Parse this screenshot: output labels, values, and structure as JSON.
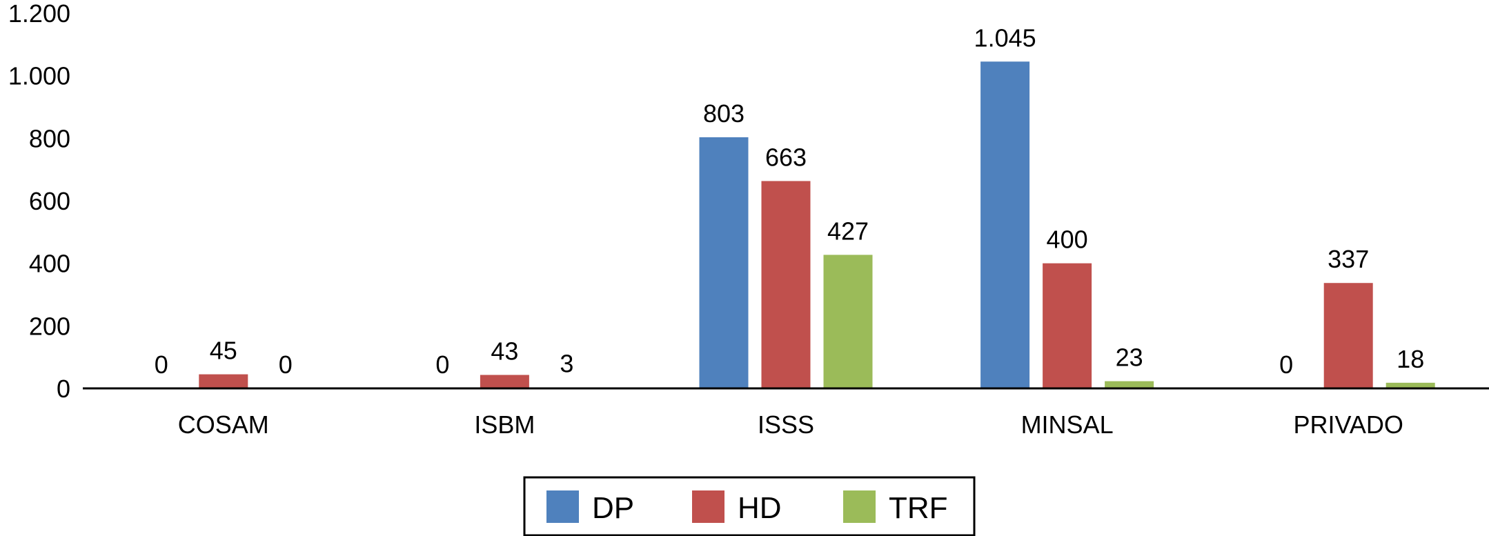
{
  "chart_data": {
    "type": "bar",
    "title": "",
    "xlabel": "",
    "ylabel": "",
    "ylim": [
      0,
      1200
    ],
    "yticks": [
      0,
      200,
      400,
      600,
      800,
      1000,
      1200
    ],
    "ytick_labels": [
      "0",
      "200",
      "400",
      "600",
      "800",
      "1.000",
      "1.200"
    ],
    "grid": false,
    "legend_position": "bottom",
    "categories": [
      "COSAM",
      "ISBM",
      "ISSS",
      "MINSAL",
      "PRIVADO"
    ],
    "series": [
      {
        "name": "DP",
        "color": "#4F81BD",
        "values": [
          0,
          0,
          803,
          1045,
          0
        ],
        "labels": [
          "0",
          "0",
          "803",
          "1.045",
          "0"
        ]
      },
      {
        "name": "HD",
        "color": "#C0504D",
        "values": [
          45,
          43,
          663,
          400,
          337
        ],
        "labels": [
          "45",
          "43",
          "663",
          "400",
          "337"
        ]
      },
      {
        "name": "TRF",
        "color": "#9BBB59",
        "values": [
          0,
          3,
          427,
          23,
          18
        ],
        "labels": [
          "0",
          "3",
          "427",
          "23",
          "18"
        ]
      }
    ]
  }
}
